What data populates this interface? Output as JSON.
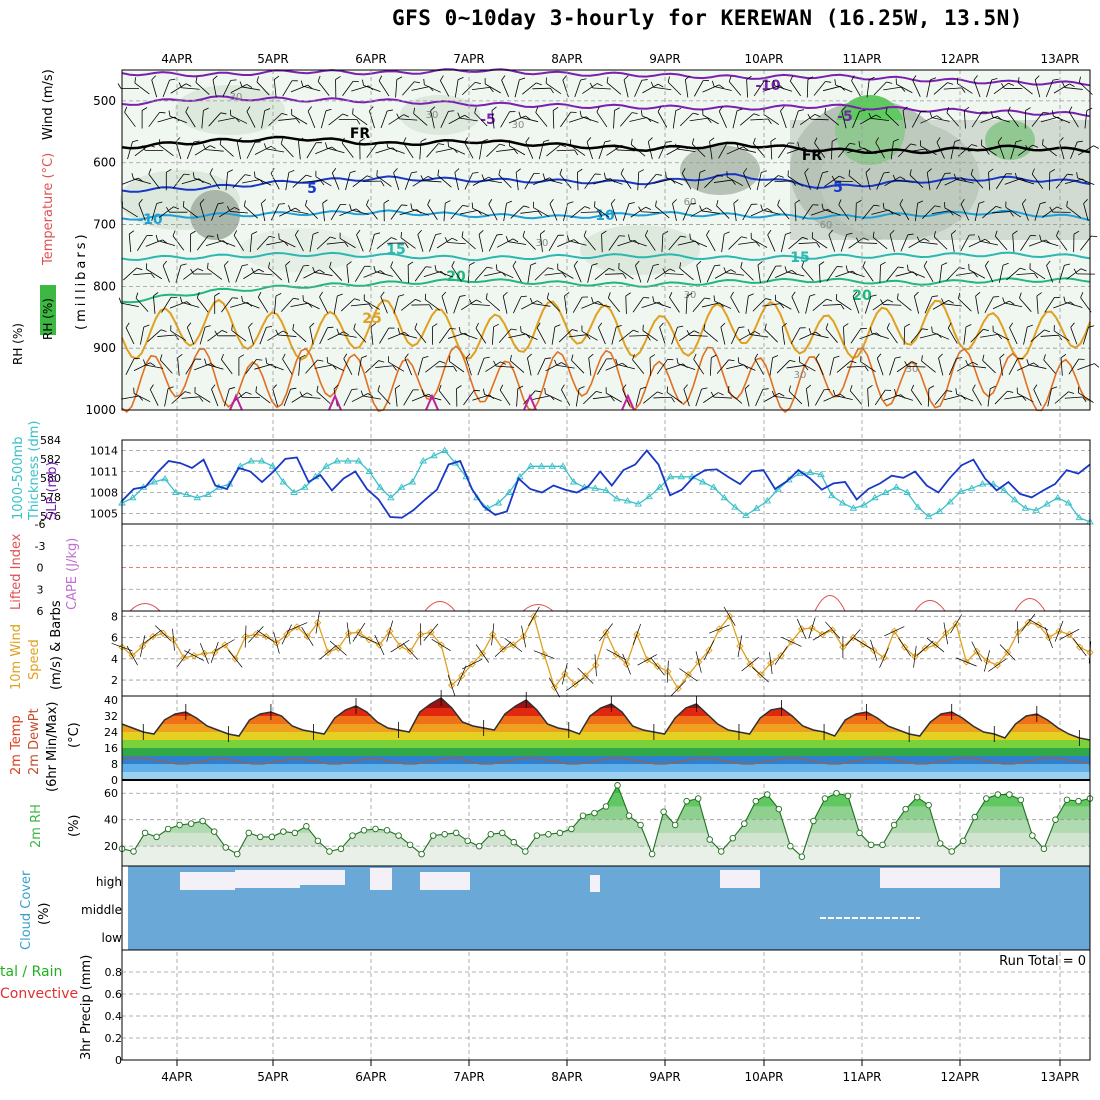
{
  "title": "GFS 0~10day 3-hourly for KEREWAN (16.25W, 13.5N)",
  "date_labels": [
    "4APR",
    "5APR",
    "6APR",
    "7APR",
    "8APR",
    "9APR",
    "10APR",
    "11APR",
    "12APR",
    "13APR"
  ],
  "colors": {
    "rh_green": "#3cb843",
    "temp_red": "#e03030",
    "orange": "#e0a020",
    "sky": "#6fa8d6",
    "cyan": "#3ac0c8",
    "blue": "#1838c8",
    "purple": "#7a20b0",
    "lime": "#25c425"
  },
  "chart_data": [
    {
      "type": "heatmap",
      "name_key": "upper_air",
      "ylabel_parts": [
        "Wind (m/s)",
        "Temperature (°C)",
        "RH (%)",
        "(millibars)"
      ],
      "ylim": [
        1000,
        450
      ],
      "yticks": [
        500,
        600,
        700,
        800,
        900,
        1000
      ],
      "isotherm_labels": [
        "-10",
        "-5",
        "FR",
        "5",
        "10",
        "15",
        "20",
        "25",
        "30",
        "60"
      ],
      "isotherms": [
        {
          "label": "-10",
          "color": "#7a20b0",
          "p": [
            455,
            458,
            452,
            455,
            450,
            456,
            458,
            462,
            460,
            465,
            470,
            472
          ]
        },
        {
          "label": "-5",
          "color": "#7a20b0",
          "p": [
            505,
            495,
            498,
            500,
            505,
            508,
            510,
            512,
            508,
            514,
            518,
            522
          ]
        },
        {
          "label": "FR",
          "color": "#000000",
          "p": [
            575,
            565,
            560,
            570,
            565,
            572,
            578,
            570,
            580,
            582,
            575,
            580
          ]
        },
        {
          "label": "5",
          "color": "#1838c8",
          "p": [
            645,
            640,
            630,
            625,
            628,
            630,
            632,
            620,
            640,
            630,
            625,
            632
          ]
        },
        {
          "label": "10",
          "color": "#1ca0d8",
          "p": [
            690,
            685,
            682,
            680,
            685,
            688,
            682,
            685,
            688,
            684,
            680,
            690
          ]
        },
        {
          "label": "15",
          "color": "#2ab8b0",
          "p": [
            755,
            752,
            748,
            750,
            755,
            752,
            750,
            755,
            752,
            750,
            748,
            752
          ]
        },
        {
          "label": "20",
          "color": "#20b880",
          "p": [
            825,
            808,
            800,
            795,
            790,
            795,
            798,
            792,
            790,
            795,
            790,
            790
          ]
        }
      ]
    },
    {
      "type": "line",
      "name_key": "thickness_slp",
      "ylabel_left": "1000-500mb Thickness (dm)",
      "ylabel_right": "SLP (mb)",
      "thickness_ticks": [
        "584",
        "582",
        "580",
        "578",
        "576"
      ],
      "slp_ticks": [
        "1014",
        "1011",
        "1008",
        "1005"
      ],
      "series": [
        {
          "name": "SLP",
          "color": "#1838c8",
          "values": [
            1006.8,
            1008.5,
            1008.8,
            1010.8,
            1012.5,
            1012.2,
            1011.5,
            1012.7,
            1009,
            1008.5,
            1011.5,
            1011,
            1009.5,
            1011,
            1012.8,
            1013,
            1009.5,
            1010.5,
            1008.3,
            1010,
            1011,
            1008.5,
            1007,
            1004.5,
            1004.4,
            1005.5,
            1007,
            1008.4,
            1012,
            1012.5,
            1008.5,
            1006,
            1004.8,
            1005.3,
            1010,
            1008.5,
            1008,
            1009,
            1008.4,
            1008,
            1008.9,
            1011,
            1009,
            1011.2,
            1012,
            1014,
            1012,
            1007.6,
            1008.4,
            1010.2,
            1011.2,
            1011.3,
            1010.2,
            1009.2,
            1011,
            1011.2,
            1008.5,
            1009.6,
            1011.2,
            1010,
            1008.4,
            1009.3,
            1009.5,
            1007,
            1008.5,
            1009.3,
            1010.4,
            1010.1,
            1011,
            1009,
            1008,
            1010.1,
            1011.9,
            1012.7,
            1010,
            1008.3,
            1009.5,
            1007.8,
            1007.3,
            1008.3,
            1009.2,
            1011.2,
            1010.7,
            1012
          ]
        },
        {
          "name": "Thickness",
          "color": "#3ac0c8",
          "values": [
            578,
            578.5,
            579.5,
            580,
            580.3,
            579,
            578.8,
            578.5,
            578.8,
            579.5,
            579.8,
            581.5,
            582,
            582,
            581.5,
            580,
            579,
            579.5,
            580.5,
            581.5,
            582,
            582,
            582,
            581,
            579.5,
            578.5,
            579.5,
            580,
            582,
            582.5,
            583,
            581.8,
            580.5,
            578.5,
            577.5,
            578,
            579,
            580.5,
            581.5,
            581.5,
            581.5,
            581.5,
            580,
            579.5,
            579.4,
            579.2,
            578.4,
            578.2,
            577.9,
            578.6,
            579.5,
            580.5,
            580.5,
            580.5,
            580,
            579.5,
            578.5,
            577.6,
            576.8,
            577.5,
            578.2,
            579.3,
            580.2,
            580.8,
            580.9,
            580.7,
            578.7,
            578,
            577.5,
            577.8,
            578.5,
            579,
            579.5,
            579,
            577.6,
            576.7,
            577.2,
            578.1,
            579.1,
            579.4,
            579.8,
            579.8,
            579.2,
            578.3,
            577.5,
            577.3,
            577.9,
            578.5,
            578,
            576.6,
            576.2
          ]
        }
      ]
    },
    {
      "type": "line",
      "name_key": "stability",
      "ylabel_left": "Lifted Index",
      "ylabel_right": "CAPE (J/kg)",
      "li_ticks": [
        "-6",
        "-3",
        "0",
        "3",
        "6"
      ],
      "series": [
        {
          "name": "Lifted Index",
          "color": "#e03030",
          "values": [
            6,
            4.5,
            4.5,
            6,
            6,
            6,
            6,
            6,
            6,
            6,
            6,
            6,
            6,
            6,
            6,
            6,
            6,
            6,
            6,
            6,
            6,
            6,
            6,
            6,
            6,
            6,
            6,
            6,
            6,
            4.5,
            4.5,
            6,
            6,
            6,
            6,
            6,
            6,
            6,
            6,
            5.8,
            6,
            6,
            6,
            6,
            6,
            6,
            6,
            6,
            6,
            6,
            6,
            6,
            6,
            6,
            5.8,
            6,
            6,
            6,
            6,
            6,
            6,
            6,
            6,
            6,
            6,
            6,
            6,
            6,
            6,
            6,
            6,
            6,
            6,
            6,
            6,
            6,
            6,
            6,
            6,
            6,
            6,
            6,
            6,
            6,
            6,
            6,
            6,
            6,
            6,
            6,
            6,
            6,
            6,
            6,
            6,
            6,
            6,
            6,
            6,
            6,
            6,
            6,
            6,
            6,
            6,
            6,
            6,
            6,
            6,
            6,
            6,
            6,
            6,
            6,
            6,
            6,
            6,
            6,
            6,
            6,
            6,
            6,
            6,
            6,
            6,
            6,
            6,
            6,
            6,
            6,
            6,
            6,
            6,
            6,
            6,
            6,
            6,
            6,
            6,
            6,
            6,
            6,
            6,
            6,
            6,
            6,
            6,
            6,
            6,
            6,
            6,
            6,
            6,
            6,
            6,
            6,
            6,
            6,
            6,
            6,
            6,
            6,
            6,
            6,
            6,
            6,
            6,
            6,
            6,
            6,
            6,
            6,
            6,
            6,
            6,
            6,
            6,
            6,
            6,
            6,
            6,
            6,
            6,
            6,
            6,
            6,
            6,
            6,
            6,
            6,
            6,
            6,
            6,
            6,
            6,
            6,
            6,
            6,
            6,
            6,
            6,
            6,
            6,
            6,
            6,
            6,
            6,
            6,
            6,
            6,
            6,
            6,
            6,
            6,
            6,
            6,
            6,
            6,
            6,
            6,
            6,
            6,
            6,
            6,
            6,
            6,
            6,
            6,
            6,
            6,
            6,
            6,
            6,
            6,
            6,
            6,
            6,
            6,
            6,
            6,
            6,
            6,
            6,
            6,
            6,
            6,
            6,
            6,
            6,
            6,
            6,
            6,
            6,
            6,
            6,
            6,
            6,
            6,
            6,
            6,
            6,
            6,
            6,
            6,
            6,
            6,
            6,
            6,
            6,
            6,
            6,
            6,
            6,
            6,
            6,
            6,
            6,
            6,
            6,
            6,
            6,
            6,
            6,
            6
          ]
        }
      ]
    },
    {
      "type": "line",
      "name_key": "wind10m",
      "ylabel": "10m Wind Speed (m/s) & Barbs",
      "yticks": [
        "2",
        "4",
        "6",
        "8"
      ],
      "series": [
        {
          "name": "Wind Speed",
          "color": "#e0a020",
          "values": [
            5.1,
            4.3,
            5.2,
            6.1,
            6.4,
            5.8,
            4.1,
            4.3,
            4.5,
            4.6,
            5.3,
            4,
            6.1,
            6.3,
            6.1,
            5.5,
            6.3,
            7,
            6.1,
            7.4,
            4.6,
            5,
            6.4,
            6.5,
            5.8,
            5.3,
            6.6,
            5.2,
            4.7,
            6.3,
            6.5,
            5.3,
            1.5,
            2.4,
            3.5,
            4.5,
            6.3,
            4.9,
            5.3,
            6.1,
            8,
            4.4,
            1.3,
            2.6,
            1.6,
            2.4,
            3.4,
            6.5,
            4.4,
            3.5,
            6.3,
            3.9,
            3.3,
            2.8,
            1.2,
            2.5,
            3.7,
            4.8,
            6.8,
            8,
            5.2,
            3.5,
            2.5,
            3.6,
            4.3,
            5.6,
            6.8,
            6.9,
            6.3,
            6.7,
            5.1,
            6,
            5.4,
            4.8,
            4.1,
            6.6,
            5.1,
            4.2,
            5,
            5.3,
            6.4,
            7.3,
            3.7,
            4.7,
            3.8,
            3.4,
            4.6,
            6.5,
            7.4,
            7.2,
            6,
            6.6,
            6.3,
            5.1,
            4.6
          ]
        }
      ]
    },
    {
      "type": "area",
      "name_key": "temp2m",
      "ylabel": "2m Temp 2m DewPt (6hr Min/Max) (°C)",
      "yticks": [
        "0",
        "8",
        "16",
        "24",
        "32",
        "40"
      ],
      "series": [
        {
          "name": "2m Temp",
          "values": [
            28,
            26,
            24,
            23,
            30,
            33,
            34,
            31,
            27,
            25,
            23,
            22,
            30,
            33,
            34,
            32,
            27,
            25,
            24,
            23,
            31,
            35,
            37,
            34,
            29,
            26,
            25,
            24,
            34,
            38,
            41,
            36,
            29,
            27,
            26,
            25,
            33,
            37,
            40,
            35,
            28,
            26,
            25,
            23,
            32,
            36,
            38,
            34,
            27,
            25,
            24,
            23,
            31,
            36,
            38,
            33,
            28,
            25,
            24,
            23,
            31,
            35,
            36,
            32,
            27,
            25,
            24,
            22,
            30,
            33,
            34,
            31,
            27,
            25,
            23,
            22,
            29,
            33,
            34,
            31,
            27,
            24,
            23,
            21,
            28,
            32,
            33,
            30,
            26,
            23,
            21,
            20
          ]
        },
        {
          "name": "2m DewPt",
          "values": [
            10,
            11,
            11,
            10,
            9,
            8,
            8,
            9,
            10,
            11,
            10,
            9,
            8,
            8,
            9,
            10,
            11,
            10,
            9,
            8,
            8,
            9,
            10,
            11,
            10,
            9,
            8,
            8,
            9,
            10,
            11,
            11,
            9,
            8,
            8,
            9,
            10,
            11,
            11,
            10,
            9,
            8,
            8,
            9,
            10,
            11,
            11,
            10,
            9,
            8,
            8,
            9,
            10,
            11,
            11,
            10,
            9,
            8,
            8,
            9,
            10,
            11,
            11,
            10,
            9,
            8,
            8,
            9,
            10,
            11,
            11,
            10,
            9,
            8,
            8,
            9,
            10,
            11,
            11,
            10,
            9,
            8,
            8,
            9,
            10,
            11,
            11,
            10,
            9,
            8
          ]
        }
      ]
    },
    {
      "type": "area",
      "name_key": "rh2m",
      "ylabel": "2m RH (%)",
      "yticks": [
        "20",
        "40",
        "60"
      ],
      "series": [
        {
          "name": "2m RH",
          "values": [
            18,
            16,
            30,
            27,
            33,
            36,
            37,
            39,
            31,
            19,
            14,
            30,
            27,
            27,
            31,
            30,
            35,
            24,
            16,
            18,
            28,
            32,
            33,
            32,
            28,
            21,
            14,
            28,
            29,
            30,
            24,
            20,
            29,
            30,
            23,
            16,
            28,
            29,
            30,
            33,
            43,
            45,
            50,
            66,
            43,
            36,
            14,
            46,
            36,
            54,
            56,
            25,
            16,
            26,
            37,
            54,
            59,
            48,
            20,
            12,
            39,
            56,
            60,
            58,
            30,
            21,
            21,
            36,
            48,
            57,
            51,
            22,
            16,
            24,
            42,
            56,
            59,
            59,
            55,
            28,
            18,
            40,
            55,
            54,
            56
          ]
        }
      ]
    },
    {
      "type": "bar",
      "name_key": "cloud",
      "ylabel": "Cloud Cover (%)",
      "levels": [
        "high",
        "middle",
        "low"
      ]
    },
    {
      "type": "bar",
      "name_key": "precip",
      "ylabel_left": "Total / Rain",
      "ylabel_left2": "Convective",
      "ylabel": "3hr Precip (mm)",
      "yticks": [
        "0",
        "0.2",
        "0.4",
        "0.6",
        "0.8"
      ],
      "run_total": "Run Total = 0"
    }
  ],
  "labels": {
    "wind": "Wind (m/s)",
    "temp": "Temperature (°C)",
    "rh": "RH (%)",
    "mb": "(millibars)",
    "thick": "1000-500mb",
    "thick2": "Thickness (dm)",
    "slp": "SLP (mb)",
    "li": "Lifted Index",
    "cape": "CAPE (J/kg)",
    "w10a": "10m Wind",
    "w10b": "Speed",
    "w10c": "(m/s) & Barbs",
    "t2a": "2m Temp",
    "t2b": "2m DewPt",
    "t2c": "(6hr Min/Max)",
    "t2d": "(°C)",
    "rh2a": "2m RH",
    "rh2b": "(%)",
    "cca": "Cloud Cover",
    "ccb": "(%)",
    "pra": "tal / Rain",
    "prb": "Convective",
    "prc": "3hr Precip (mm)",
    "run_total": "Run Total = 0"
  }
}
